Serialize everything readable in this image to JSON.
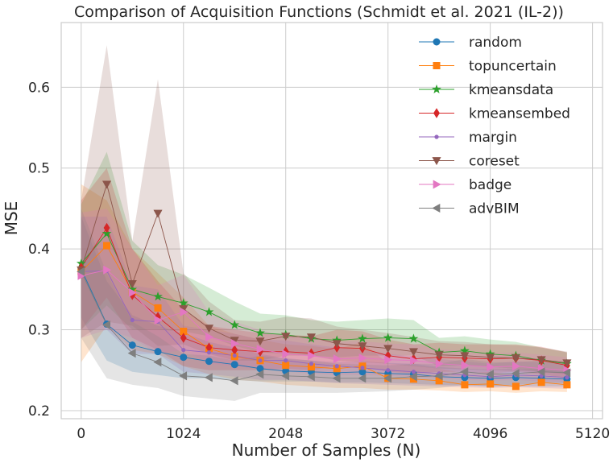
{
  "chart_data": {
    "type": "line",
    "title": "Comparison of Acquisition Functions (Schmidt et al. 2021 (IL-2))",
    "xlabel": "Number of Samples (N)",
    "ylabel": "MSE",
    "xlim": [
      -200,
      5220
    ],
    "ylim": [
      0.19,
      0.68
    ],
    "xticks": [
      0,
      1024,
      2048,
      3072,
      4096,
      5120
    ],
    "yticks": [
      0.2,
      0.3,
      0.4,
      0.5,
      0.6
    ],
    "ytick_labels": [
      "0.2",
      "0.3",
      "0.4",
      "0.5",
      "0.6"
    ],
    "grid": true,
    "legend_position": "top-right",
    "x": [
      0,
      256,
      512,
      768,
      1024,
      1280,
      1536,
      1792,
      2048,
      2304,
      2560,
      2816,
      3072,
      3328,
      3584,
      3840,
      4096,
      4352,
      4608,
      4864
    ],
    "series": [
      {
        "name": "random",
        "color": "#1f77b4",
        "marker": "circle",
        "values": [
          0.375,
          0.307,
          0.281,
          0.273,
          0.266,
          0.261,
          0.257,
          0.252,
          0.249,
          0.248,
          0.247,
          0.248,
          0.246,
          0.245,
          0.242,
          0.241,
          0.24,
          0.241,
          0.24,
          0.239
        ],
        "lower": [
          0.315,
          0.262,
          0.248,
          0.244,
          0.24,
          0.24,
          0.238,
          0.236,
          0.236,
          0.236,
          0.235,
          0.235,
          0.234,
          0.233,
          0.232,
          0.231,
          0.23,
          0.23,
          0.23,
          0.23
        ],
        "upper": [
          0.44,
          0.36,
          0.318,
          0.305,
          0.296,
          0.285,
          0.278,
          0.27,
          0.265,
          0.262,
          0.26,
          0.261,
          0.259,
          0.258,
          0.254,
          0.252,
          0.251,
          0.252,
          0.251,
          0.249
        ]
      },
      {
        "name": "topuncertain",
        "color": "#ff7f0e",
        "marker": "square",
        "values": [
          0.372,
          0.404,
          0.347,
          0.327,
          0.298,
          0.277,
          0.267,
          0.262,
          0.256,
          0.254,
          0.252,
          0.255,
          0.24,
          0.239,
          0.237,
          0.232,
          0.233,
          0.23,
          0.235,
          0.232
        ],
        "lower": [
          0.26,
          0.305,
          0.275,
          0.27,
          0.255,
          0.245,
          0.238,
          0.236,
          0.232,
          0.23,
          0.228,
          0.228,
          0.226,
          0.226,
          0.225,
          0.223,
          0.224,
          0.222,
          0.224,
          0.223
        ],
        "upper": [
          0.48,
          0.46,
          0.4,
          0.37,
          0.34,
          0.305,
          0.295,
          0.288,
          0.282,
          0.28,
          0.276,
          0.285,
          0.258,
          0.256,
          0.252,
          0.246,
          0.248,
          0.244,
          0.249,
          0.246
        ]
      },
      {
        "name": "kmeansdata",
        "color": "#2ca02c",
        "marker": "star",
        "values": [
          0.382,
          0.419,
          0.35,
          0.341,
          0.333,
          0.322,
          0.306,
          0.296,
          0.294,
          0.289,
          0.287,
          0.289,
          0.29,
          0.289,
          0.272,
          0.274,
          0.27,
          0.268,
          0.262,
          0.258
        ],
        "lower": [
          0.3,
          0.33,
          0.3,
          0.3,
          0.298,
          0.292,
          0.28,
          0.272,
          0.27,
          0.268,
          0.266,
          0.268,
          0.268,
          0.268,
          0.255,
          0.256,
          0.254,
          0.252,
          0.248,
          0.246
        ],
        "upper": [
          0.455,
          0.52,
          0.41,
          0.38,
          0.368,
          0.352,
          0.335,
          0.32,
          0.318,
          0.312,
          0.31,
          0.312,
          0.314,
          0.312,
          0.29,
          0.292,
          0.288,
          0.285,
          0.278,
          0.272
        ]
      },
      {
        "name": "kmeansembed",
        "color": "#d62728",
        "marker": "diamond",
        "values": [
          0.377,
          0.426,
          0.343,
          0.316,
          0.29,
          0.278,
          0.275,
          0.273,
          0.273,
          0.271,
          0.278,
          0.277,
          0.268,
          0.264,
          0.266,
          0.265,
          0.264,
          0.265,
          0.262,
          0.256
        ],
        "lower": [
          0.3,
          0.34,
          0.29,
          0.275,
          0.255,
          0.25,
          0.25,
          0.25,
          0.252,
          0.25,
          0.255,
          0.255,
          0.248,
          0.246,
          0.248,
          0.248,
          0.246,
          0.248,
          0.245,
          0.24
        ],
        "upper": [
          0.46,
          0.5,
          0.4,
          0.36,
          0.325,
          0.305,
          0.3,
          0.296,
          0.294,
          0.292,
          0.3,
          0.298,
          0.288,
          0.282,
          0.284,
          0.282,
          0.282,
          0.282,
          0.279,
          0.272
        ]
      },
      {
        "name": "margin",
        "color": "#9467bd",
        "marker": "dot",
        "values": [
          0.372,
          0.373,
          0.312,
          0.31,
          0.275,
          0.272,
          0.268,
          0.262,
          0.262,
          0.258,
          0.255,
          0.253,
          0.25,
          0.248,
          0.246,
          0.244,
          0.242,
          0.244,
          0.243,
          0.241
        ],
        "lower": [
          0.3,
          0.3,
          0.27,
          0.27,
          0.248,
          0.245,
          0.242,
          0.238,
          0.238,
          0.236,
          0.234,
          0.233,
          0.232,
          0.231,
          0.23,
          0.229,
          0.228,
          0.229,
          0.228,
          0.227
        ],
        "upper": [
          0.44,
          0.44,
          0.355,
          0.35,
          0.305,
          0.3,
          0.295,
          0.288,
          0.287,
          0.282,
          0.278,
          0.275,
          0.27,
          0.267,
          0.264,
          0.261,
          0.258,
          0.261,
          0.26,
          0.257
        ]
      },
      {
        "name": "coreset",
        "color": "#8c564b",
        "marker": "triangle-down",
        "values": [
          0.374,
          0.48,
          0.357,
          0.444,
          0.326,
          0.302,
          0.287,
          0.286,
          0.292,
          0.291,
          0.283,
          0.28,
          0.277,
          0.273,
          0.269,
          0.268,
          0.266,
          0.265,
          0.263,
          0.259
        ],
        "lower": [
          0.29,
          0.31,
          0.305,
          0.28,
          0.282,
          0.27,
          0.262,
          0.262,
          0.268,
          0.268,
          0.262,
          0.26,
          0.258,
          0.255,
          0.252,
          0.251,
          0.25,
          0.249,
          0.248,
          0.245
        ],
        "upper": [
          0.46,
          0.652,
          0.41,
          0.61,
          0.37,
          0.335,
          0.312,
          0.31,
          0.316,
          0.314,
          0.304,
          0.3,
          0.296,
          0.291,
          0.286,
          0.285,
          0.282,
          0.281,
          0.278,
          0.273
        ]
      },
      {
        "name": "badge",
        "color": "#e377c2",
        "marker": "triangle-right",
        "values": [
          0.367,
          0.374,
          0.346,
          0.312,
          0.322,
          0.291,
          0.283,
          0.276,
          0.27,
          0.268,
          0.264,
          0.265,
          0.263,
          0.262,
          0.258,
          0.256,
          0.254,
          0.255,
          0.252,
          0.25
        ],
        "lower": [
          0.29,
          0.3,
          0.29,
          0.27,
          0.275,
          0.258,
          0.255,
          0.252,
          0.248,
          0.246,
          0.244,
          0.244,
          0.243,
          0.242,
          0.24,
          0.238,
          0.237,
          0.238,
          0.236,
          0.235
        ],
        "upper": [
          0.445,
          0.45,
          0.4,
          0.355,
          0.368,
          0.322,
          0.31,
          0.3,
          0.292,
          0.29,
          0.285,
          0.286,
          0.283,
          0.282,
          0.276,
          0.274,
          0.271,
          0.272,
          0.269,
          0.266
        ]
      },
      {
        "name": "advBIM",
        "color": "#7f7f7f",
        "marker": "triangle-left",
        "values": [
          0.372,
          0.306,
          0.271,
          0.26,
          0.243,
          0.241,
          0.237,
          0.245,
          0.243,
          0.242,
          0.24,
          0.24,
          0.24,
          0.242,
          0.243,
          0.248,
          0.245,
          0.246,
          0.248,
          0.247
        ],
        "lower": [
          0.29,
          0.24,
          0.232,
          0.228,
          0.218,
          0.215,
          0.212,
          0.222,
          0.222,
          0.222,
          0.222,
          0.223,
          0.224,
          0.226,
          0.228,
          0.232,
          0.23,
          0.232,
          0.234,
          0.234
        ],
        "upper": [
          0.45,
          0.37,
          0.31,
          0.292,
          0.27,
          0.268,
          0.262,
          0.268,
          0.264,
          0.262,
          0.258,
          0.257,
          0.256,
          0.258,
          0.258,
          0.264,
          0.26,
          0.26,
          0.262,
          0.26
        ]
      }
    ]
  }
}
